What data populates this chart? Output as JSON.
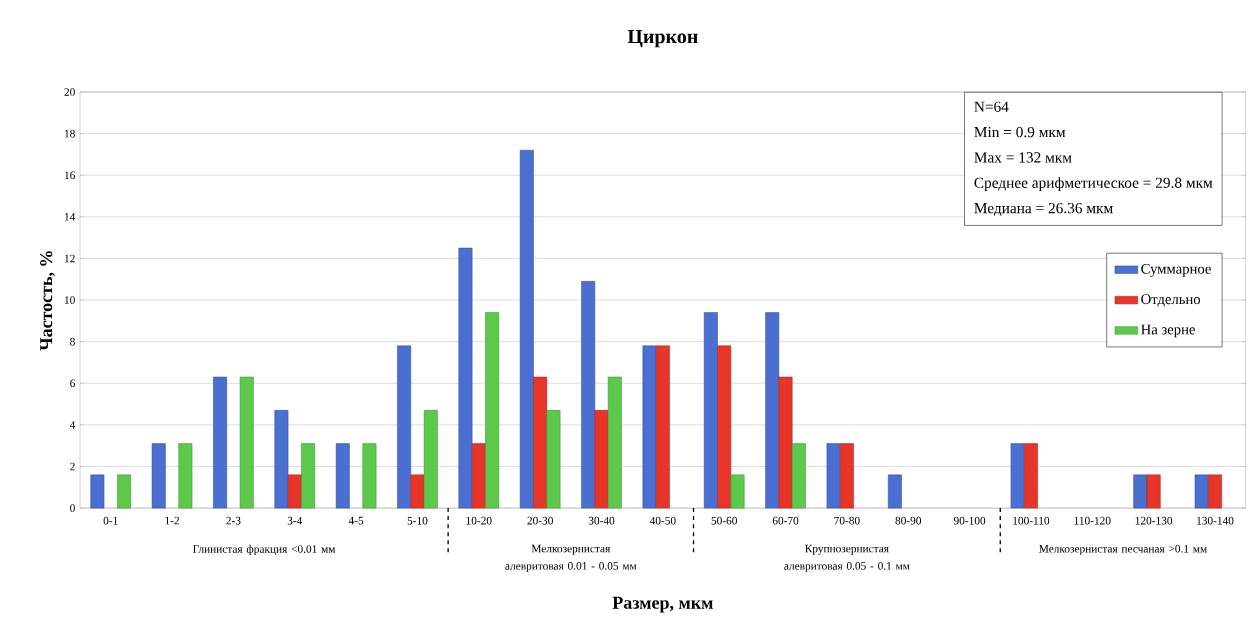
{
  "chart_data": {
    "type": "bar",
    "title": "Циркон",
    "xlabel": "Размер, мкм",
    "ylabel": "Частость, %",
    "categories": [
      "0-1",
      "1-2",
      "2-3",
      "3-4",
      "4-5",
      "5-10",
      "10-20",
      "20-30",
      "30-40",
      "40-50",
      "50-60",
      "60-70",
      "70-80",
      "80-90",
      "90-100",
      "100-110",
      "110-120",
      "120-130",
      "130-140"
    ],
    "series": [
      {
        "name": "Суммарное",
        "color": "#4a6fd0",
        "values": [
          1.6,
          3.1,
          6.3,
          4.7,
          3.1,
          7.8,
          12.5,
          17.2,
          10.9,
          7.8,
          9.4,
          9.4,
          3.1,
          1.6,
          null,
          3.1,
          null,
          1.6,
          1.6
        ]
      },
      {
        "name": "Отдельно",
        "color": "#e8352a",
        "values": [
          null,
          null,
          null,
          1.6,
          null,
          1.6,
          3.1,
          6.3,
          4.7,
          7.8,
          7.8,
          6.3,
          3.1,
          null,
          null,
          3.1,
          null,
          1.6,
          1.6
        ]
      },
      {
        "name": "На зерне",
        "color": "#5cc94a",
        "values": [
          1.6,
          3.1,
          6.3,
          3.1,
          3.1,
          4.7,
          9.4,
          4.7,
          6.3,
          null,
          1.6,
          3.1,
          null,
          null,
          null,
          null,
          null,
          null,
          null
        ]
      }
    ],
    "ylim": [
      0,
      20
    ],
    "yticks": [
      0,
      2,
      4,
      6,
      8,
      10,
      12,
      14,
      16,
      18,
      20
    ],
    "grid": "y",
    "legend": "right",
    "annotations": [
      "N=64",
      "Min = 0.9 мкм",
      "Max = 132 мкм",
      "Среднее арифметическое = 29.8 мкм",
      "Медиана = 26.36 мкм",
      "Глинистая фракция <0.01 мм",
      "Мелкозернистая алевритовая 0.01 - 0.05 мм",
      "Крупнозернистая алевритовая 0.05 - 0.1 мм",
      "Мелкозернистая песчаная >0.1 мм"
    ]
  }
}
